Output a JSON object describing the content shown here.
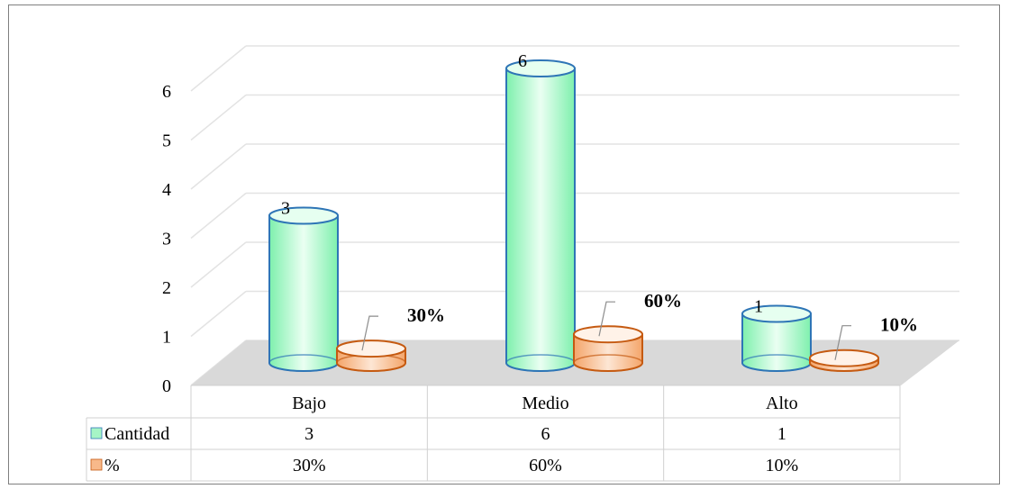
{
  "chart_data": {
    "type": "bar",
    "categories": [
      "Bajo",
      "Medio",
      "Alto"
    ],
    "ylim": [
      0,
      6
    ],
    "yticks": [
      "0",
      "1",
      "2",
      "3",
      "4",
      "5",
      "6"
    ],
    "series": [
      {
        "name": "Cantidad",
        "values": [
          3,
          6,
          1
        ],
        "labels": [
          "3",
          "6",
          "1"
        ],
        "table_values": [
          "3",
          "6",
          "1"
        ],
        "color": "#a6f5c6",
        "stroke": "#2e75b6"
      },
      {
        "name": "%",
        "values": [
          0.3,
          0.6,
          0.1
        ],
        "labels": [
          "30%",
          "60%",
          "10%"
        ],
        "table_values": [
          "30%",
          "60%",
          "10%"
        ],
        "color": "#f8b98a",
        "stroke": "#c55a11"
      }
    ],
    "grid": true,
    "legend": "data-table"
  }
}
